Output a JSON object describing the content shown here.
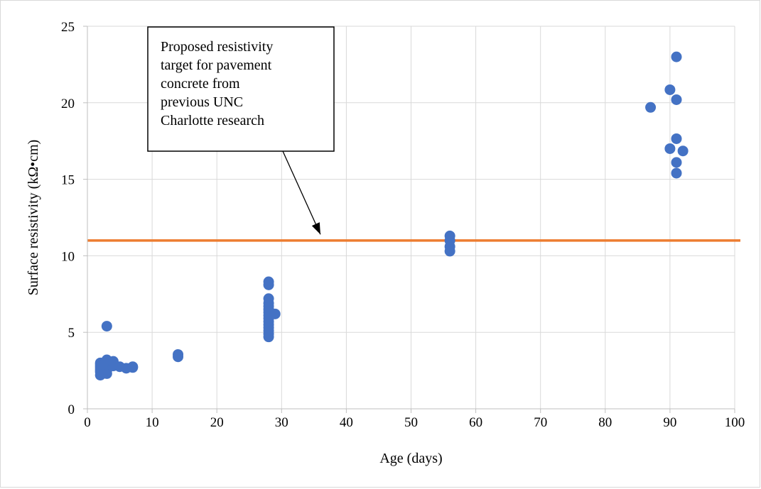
{
  "chart_data": {
    "type": "scatter",
    "title": "",
    "xlabel": "Age (days)",
    "ylabel": "Surface resistivity (kΩ•cm)",
    "xlim": [
      0,
      100
    ],
    "ylim": [
      0,
      25
    ],
    "x_ticks": [
      "0",
      "10",
      "20",
      "30",
      "40",
      "50",
      "60",
      "70",
      "80",
      "90",
      "100"
    ],
    "y_ticks": [
      "0",
      "5",
      "10",
      "15",
      "20",
      "25"
    ],
    "grid": "vertical and horizontal major gridlines",
    "legend": "none",
    "colors": {
      "points": "#4472c4",
      "target_line": "#ed7d31",
      "grid": "#d9d9d9"
    },
    "series": [
      {
        "points": [
          [
            2,
            2.2
          ],
          [
            2,
            2.4
          ],
          [
            2,
            2.5
          ],
          [
            2,
            2.6
          ],
          [
            2,
            2.7
          ],
          [
            2,
            2.8
          ],
          [
            2,
            2.9
          ],
          [
            2,
            3.0
          ],
          [
            2.5,
            2.5
          ],
          [
            2.5,
            2.7
          ],
          [
            2.5,
            2.9
          ],
          [
            3,
            2.3
          ],
          [
            3,
            2.5
          ],
          [
            3,
            2.7
          ],
          [
            3,
            2.9
          ],
          [
            3,
            3.1
          ],
          [
            3,
            3.2
          ],
          [
            3,
            5.4
          ],
          [
            4,
            2.8
          ],
          [
            4,
            3.0
          ],
          [
            4,
            3.1
          ],
          [
            5,
            2.75
          ],
          [
            6,
            2.65
          ],
          [
            7,
            2.7
          ],
          [
            7,
            2.75
          ],
          [
            14,
            3.4
          ],
          [
            14,
            3.55
          ],
          [
            28,
            4.7
          ],
          [
            28,
            4.9
          ],
          [
            28,
            5.1
          ],
          [
            28,
            5.3
          ],
          [
            28,
            5.5
          ],
          [
            28,
            5.7
          ],
          [
            28,
            5.9
          ],
          [
            28,
            6.1
          ],
          [
            28,
            6.3
          ],
          [
            28,
            6.5
          ],
          [
            28,
            6.7
          ],
          [
            28,
            6.9
          ],
          [
            28,
            7.2
          ],
          [
            28,
            8.1
          ],
          [
            28,
            8.3
          ],
          [
            29,
            6.2
          ],
          [
            56,
            10.3
          ],
          [
            56,
            10.6
          ],
          [
            56,
            11.0
          ],
          [
            56,
            11.3
          ],
          [
            87,
            19.7
          ],
          [
            90,
            20.85
          ],
          [
            90,
            17.0
          ],
          [
            91,
            23.0
          ],
          [
            91,
            20.2
          ],
          [
            91,
            17.65
          ],
          [
            91,
            16.1
          ],
          [
            91,
            15.4
          ],
          [
            92,
            16.85
          ]
        ]
      }
    ],
    "reference_lines": [
      {
        "y": 11
      }
    ],
    "annotation": {
      "lines": [
        "Proposed resistivity",
        "target for pavement",
        "concrete from",
        "previous UNC",
        "Charlotte research"
      ],
      "arrow_target": [
        36,
        11.4
      ]
    }
  }
}
